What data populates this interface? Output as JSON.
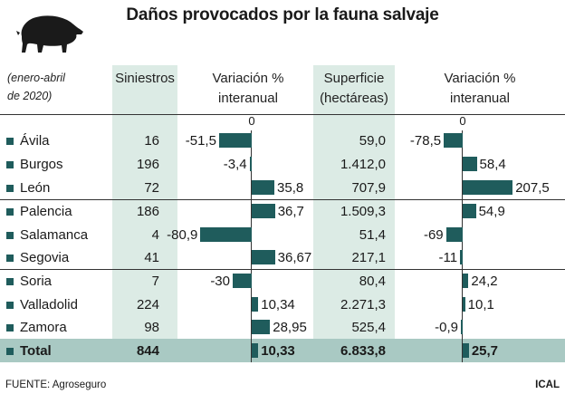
{
  "title": "Daños provocados por la fauna salvaje",
  "period_line1": "(enero-abril",
  "period_line2": "de 2020)",
  "footer": {
    "source": "FUENTE: Agroseguro",
    "credit": "ICAL"
  },
  "colors": {
    "bar": "#1f5c5c",
    "column_shade": "#dcebe5",
    "total_band": "#a9c9c3"
  },
  "icon": "boar-icon",
  "chart_data": {
    "type": "table",
    "columns": [
      {
        "key": "siniestros",
        "label": "Siniestros"
      },
      {
        "key": "var_siniestros",
        "label_line1": "Variación %",
        "label_line2": "interanual",
        "zero_label": "0"
      },
      {
        "key": "superficie",
        "label_line1": "Superficie",
        "label_line2": "(hectáreas)"
      },
      {
        "key": "var_superficie",
        "label_line1": "Variación %",
        "label_line2": "interanual",
        "zero_label": "0"
      }
    ],
    "rows": [
      {
        "name": "Ávila",
        "siniestros": "16",
        "var_siniestros": -51.5,
        "var_siniestros_label": "-51,5",
        "superficie": "59,0",
        "var_superficie": -78.5,
        "var_superficie_label": "-78,5"
      },
      {
        "name": "Burgos",
        "siniestros": "196",
        "var_siniestros": -3.4,
        "var_siniestros_label": "-3,4",
        "superficie": "1.412,0",
        "var_superficie": 58.4,
        "var_superficie_label": "58,4"
      },
      {
        "name": "León",
        "siniestros": "72",
        "var_siniestros": 35.8,
        "var_siniestros_label": "35,8",
        "superficie": "707,9",
        "var_superficie": 207.5,
        "var_superficie_label": "207,5"
      },
      {
        "name": "Palencia",
        "siniestros": "186",
        "var_siniestros": 36.7,
        "var_siniestros_label": "36,7",
        "superficie": "1.509,3",
        "var_superficie": 54.9,
        "var_superficie_label": "54,9"
      },
      {
        "name": "Salamanca",
        "siniestros": "4",
        "var_siniestros": -80.9,
        "var_siniestros_label": "-80,9",
        "superficie": "51,4",
        "var_superficie": -69,
        "var_superficie_label": "-69"
      },
      {
        "name": "Segovia",
        "siniestros": "41",
        "var_siniestros": 36.67,
        "var_siniestros_label": "36,67",
        "superficie": "217,1",
        "var_superficie": -11,
        "var_superficie_label": "-11"
      },
      {
        "name": "Soria",
        "siniestros": "7",
        "var_siniestros": -30,
        "var_siniestros_label": "-30",
        "superficie": "80,4",
        "var_superficie": 24.2,
        "var_superficie_label": "24,2"
      },
      {
        "name": "Valladolid",
        "siniestros": "224",
        "var_siniestros": 10.34,
        "var_siniestros_label": "10,34",
        "superficie": "2.271,3",
        "var_superficie": 10.1,
        "var_superficie_label": "10,1"
      },
      {
        "name": "Zamora",
        "siniestros": "98",
        "var_siniestros": 28.95,
        "var_siniestros_label": "28,95",
        "superficie": "525,4",
        "var_superficie": -0.9,
        "var_superficie_label": "-0,9"
      }
    ],
    "total": {
      "name": "Total",
      "siniestros": "844",
      "var_siniestros": 10.33,
      "var_siniestros_label": "10,33",
      "superficie": "6.833,8",
      "var_superficie": 25.7,
      "var_superficie_label": "25,7"
    }
  }
}
